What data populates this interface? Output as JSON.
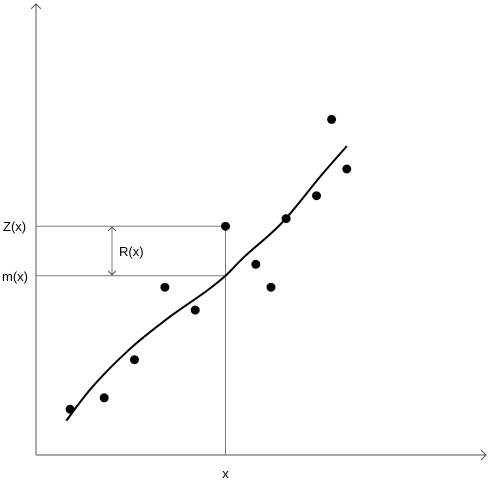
{
  "chart_data": {
    "type": "scatter",
    "title": "",
    "xlabel": "",
    "ylabel": "",
    "grid": false,
    "legend": "none",
    "xlim": [
      0,
      10
    ],
    "ylim": [
      0,
      10
    ],
    "points": [
      {
        "x": 0.9,
        "y": 1.2
      },
      {
        "x": 1.8,
        "y": 1.5
      },
      {
        "x": 2.6,
        "y": 2.5
      },
      {
        "x": 3.4,
        "y": 4.4
      },
      {
        "x": 4.2,
        "y": 3.8
      },
      {
        "x": 5.0,
        "y": 6.0
      },
      {
        "x": 5.8,
        "y": 5.0
      },
      {
        "x": 6.2,
        "y": 4.4
      },
      {
        "x": 6.6,
        "y": 6.2
      },
      {
        "x": 7.4,
        "y": 6.8
      },
      {
        "x": 7.8,
        "y": 8.8
      },
      {
        "x": 8.2,
        "y": 7.5
      }
    ],
    "fit_curve": [
      {
        "x": 0.8,
        "y": 0.9
      },
      {
        "x": 1.5,
        "y": 1.8
      },
      {
        "x": 2.5,
        "y": 2.8
      },
      {
        "x": 3.5,
        "y": 3.6
      },
      {
        "x": 4.5,
        "y": 4.3
      },
      {
        "x": 5.0,
        "y": 4.7
      },
      {
        "x": 5.5,
        "y": 5.2
      },
      {
        "x": 6.5,
        "y": 6.1
      },
      {
        "x": 7.5,
        "y": 7.3
      },
      {
        "x": 8.2,
        "y": 8.1
      }
    ],
    "highlight": {
      "x": 5.0,
      "y": 6.0,
      "fit_y": 4.7
    },
    "annotations": {
      "x_marker": "x",
      "z_label": "Z(x)",
      "m_label": "m(x)",
      "r_label": "R(x)"
    }
  },
  "colors": {
    "axis": "#555555",
    "guide": "#7a7a7a",
    "point": "#000000",
    "curve": "#000000",
    "text": "#000000"
  }
}
